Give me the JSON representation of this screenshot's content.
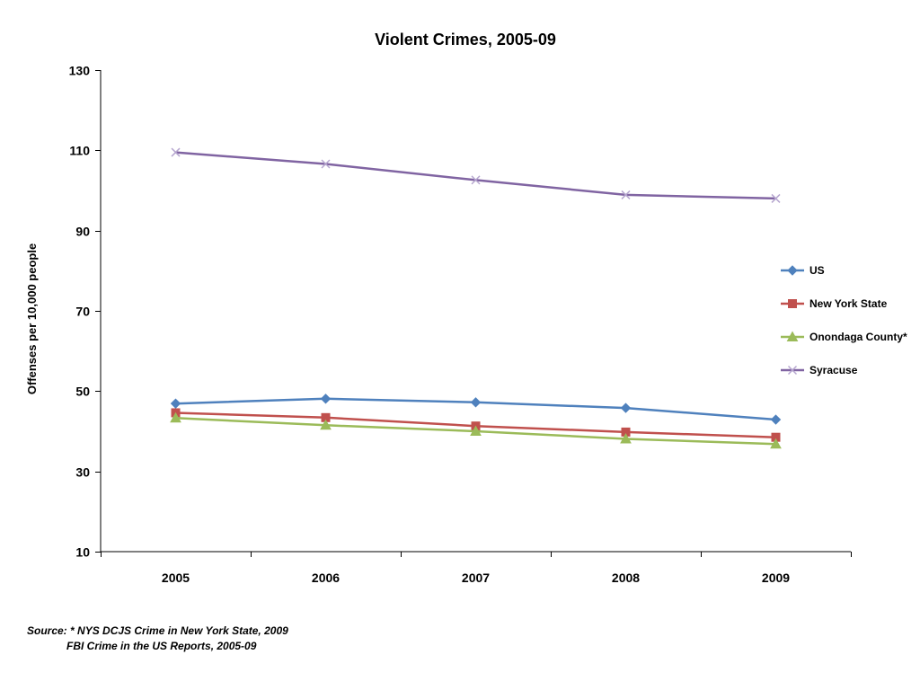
{
  "chart_data": {
    "type": "line",
    "title": "Violent Crimes, 2005-09",
    "xlabel": "",
    "ylabel": "Offenses per 10,000 people",
    "categories": [
      "2005",
      "2006",
      "2007",
      "2008",
      "2009"
    ],
    "ylim": [
      10,
      130
    ],
    "yticks": [
      10,
      30,
      50,
      70,
      90,
      110,
      130
    ],
    "grid": false,
    "legend_position": "right",
    "series": [
      {
        "name": "US",
        "values": [
          46.9,
          48.1,
          47.2,
          45.8,
          42.9
        ],
        "color": "#4F81BD",
        "marker": "diamond"
      },
      {
        "name": "New York State",
        "values": [
          44.6,
          43.4,
          41.3,
          39.8,
          38.5
        ],
        "color": "#C0504D",
        "marker": "square"
      },
      {
        "name": "Onondaga County*",
        "values": [
          43.3,
          41.5,
          40.0,
          38.1,
          36.8
        ],
        "color": "#9BBB59",
        "marker": "triangle"
      },
      {
        "name": "Syracuse",
        "values": [
          109.5,
          106.6,
          102.6,
          98.9,
          98.0
        ],
        "color": "#8064A2",
        "marker": "x"
      }
    ]
  },
  "source": {
    "prefix": "Source:",
    "star": "*",
    "line1": " NYS DCJS Crime in New York State, 2009",
    "line2": "FBI Crime in the US Reports, 2005-09"
  }
}
